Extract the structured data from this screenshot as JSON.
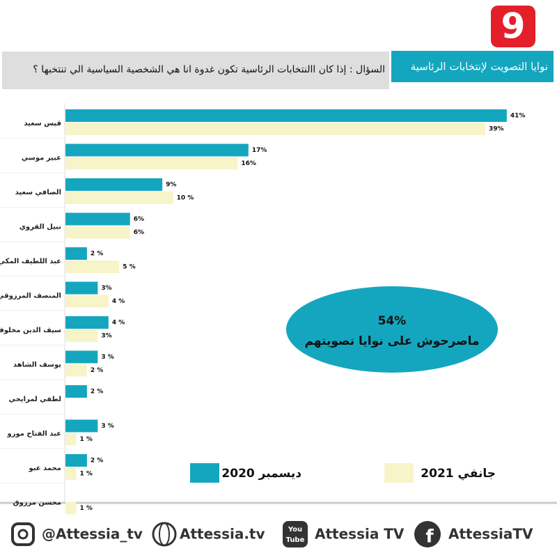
{
  "logo": "9",
  "chart_data": {
    "type": "bar",
    "orientation": "horizontal",
    "title": "نوايا التصويت لإنتخابات الرئاسية",
    "subtitle": "السؤال : إذا كان االنتخابات الرئاسية تكون غدوة انا هي الشخصية السياسية الي تنتخبها ؟",
    "categories": [
      "قيس سعيد",
      "عبير موسي",
      "الصافي سعيد",
      "نبيل القروي",
      "عبد اللطيف المكي",
      "المنصف المرزوقي",
      "سيف الدين مخلوف",
      "يوسف الشاهد",
      "لطفي لمرايحي",
      "عبد الفتاح مورو",
      "محمد عبو",
      "محسن مرزوق"
    ],
    "series": [
      {
        "name": "ديسمبر 2020",
        "color": "#14a6bf",
        "values": [
          41,
          17,
          9,
          6,
          2,
          3,
          4,
          3,
          2,
          3,
          2,
          null
        ],
        "value_labels": [
          "41%",
          "17%",
          "9%",
          "6%",
          "2 %",
          "3%",
          "4 %",
          "3 %",
          "2 %",
          "3 %",
          "2 %",
          null
        ]
      },
      {
        "name": "جانفي 2021",
        "color": "#f8f4c9",
        "values": [
          39,
          16,
          10,
          6,
          5,
          4,
          3,
          2,
          null,
          1,
          1,
          1
        ],
        "value_labels": [
          "39%",
          "16%",
          "10 %",
          "6%",
          "5 %",
          "4 %",
          "3%",
          "2 %",
          null,
          "1 %",
          "1 %",
          "1 %"
        ]
      }
    ],
    "annotation": {
      "value": 54,
      "value_label": "54%",
      "text": "ماصرحوش على نوايا تصويتهم"
    }
  },
  "footer": {
    "instagram": "@Attessia_tv",
    "website": "Attessia.tv",
    "youtube_icon": [
      "You",
      "Tube"
    ],
    "youtube": "Attessia TV",
    "facebook": "AttessiaTV"
  }
}
